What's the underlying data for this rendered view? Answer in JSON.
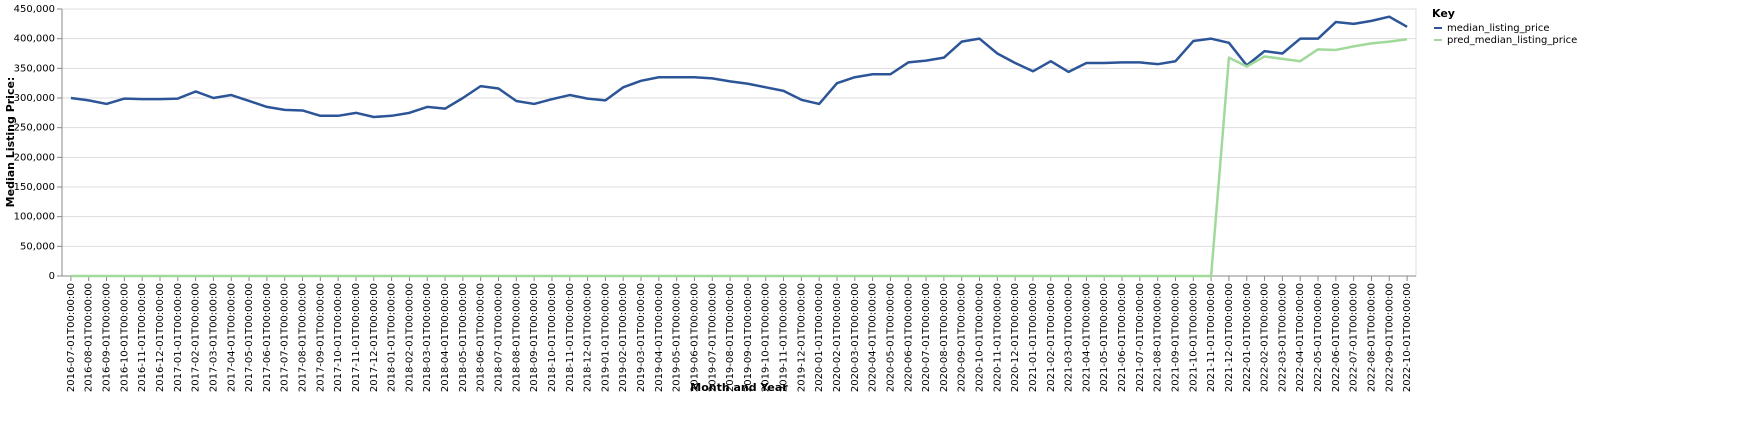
{
  "chart_data": {
    "type": "line",
    "x_label": "Month and Year",
    "y_label": "Median Listing Price:",
    "legend_title": "Key",
    "legend_position": "right",
    "grid": true,
    "categories": [
      "2016-07-01T00:00:00",
      "2016-08-01T00:00:00",
      "2016-09-01T00:00:00",
      "2016-10-01T00:00:00",
      "2016-11-01T00:00:00",
      "2016-12-01T00:00:00",
      "2017-01-01T00:00:00",
      "2017-02-01T00:00:00",
      "2017-03-01T00:00:00",
      "2017-04-01T00:00:00",
      "2017-05-01T00:00:00",
      "2017-06-01T00:00:00",
      "2017-07-01T00:00:00",
      "2017-08-01T00:00:00",
      "2017-09-01T00:00:00",
      "2017-10-01T00:00:00",
      "2017-11-01T00:00:00",
      "2017-12-01T00:00:00",
      "2018-01-01T00:00:00",
      "2018-02-01T00:00:00",
      "2018-03-01T00:00:00",
      "2018-04-01T00:00:00",
      "2018-05-01T00:00:00",
      "2018-06-01T00:00:00",
      "2018-07-01T00:00:00",
      "2018-08-01T00:00:00",
      "2018-09-01T00:00:00",
      "2018-10-01T00:00:00",
      "2018-11-01T00:00:00",
      "2018-12-01T00:00:00",
      "2019-01-01T00:00:00",
      "2019-02-01T00:00:00",
      "2019-03-01T00:00:00",
      "2019-04-01T00:00:00",
      "2019-05-01T00:00:00",
      "2019-06-01T00:00:00",
      "2019-07-01T00:00:00",
      "2019-08-01T00:00:00",
      "2019-09-01T00:00:00",
      "2019-10-01T00:00:00",
      "2019-11-01T00:00:00",
      "2019-12-01T00:00:00",
      "2020-01-01T00:00:00",
      "2020-02-01T00:00:00",
      "2020-03-01T00:00:00",
      "2020-04-01T00:00:00",
      "2020-05-01T00:00:00",
      "2020-06-01T00:00:00",
      "2020-07-01T00:00:00",
      "2020-08-01T00:00:00",
      "2020-09-01T00:00:00",
      "2020-10-01T00:00:00",
      "2020-11-01T00:00:00",
      "2020-12-01T00:00:00",
      "2021-01-01T00:00:00",
      "2021-02-01T00:00:00",
      "2021-03-01T00:00:00",
      "2021-04-01T00:00:00",
      "2021-05-01T00:00:00",
      "2021-06-01T00:00:00",
      "2021-07-01T00:00:00",
      "2021-08-01T00:00:00",
      "2021-09-01T00:00:00",
      "2021-10-01T00:00:00",
      "2021-11-01T00:00:00",
      "2021-12-01T00:00:00",
      "2022-01-01T00:00:00",
      "2022-02-01T00:00:00",
      "2022-03-01T00:00:00",
      "2022-04-01T00:00:00",
      "2022-05-01T00:00:00",
      "2022-06-01T00:00:00",
      "2022-07-01T00:00:00",
      "2022-08-01T00:00:00",
      "2022-09-01T00:00:00",
      "2022-10-01T00:00:00"
    ],
    "series": [
      {
        "name": "median_listing_price",
        "color": "#2c5598",
        "values": [
          300000,
          296000,
          290000,
          299000,
          298000,
          298000,
          299000,
          311000,
          300000,
          305000,
          295000,
          285000,
          280000,
          279000,
          270000,
          270000,
          275000,
          268000,
          270000,
          275000,
          285000,
          282000,
          300000,
          320000,
          316000,
          295000,
          290000,
          298000,
          305000,
          299000,
          296000,
          318000,
          329000,
          335000,
          335000,
          335000,
          333000,
          328000,
          324000,
          318000,
          312000,
          297000,
          290000,
          325000,
          335000,
          340000,
          340000,
          360000,
          363000,
          368000,
          395000,
          400000,
          375000,
          359000,
          345000,
          362000,
          344000,
          359000,
          359000,
          360000,
          360000,
          357000,
          362000,
          396000,
          400000,
          393000,
          355000,
          379000,
          375000,
          400000,
          400000,
          428000,
          425000,
          430000,
          437000,
          420000
        ]
      },
      {
        "name": "pred_median_listing_price",
        "color": "#a1d99b",
        "values": [
          0,
          0,
          0,
          0,
          0,
          0,
          0,
          0,
          0,
          0,
          0,
          0,
          0,
          0,
          0,
          0,
          0,
          0,
          0,
          0,
          0,
          0,
          0,
          0,
          0,
          0,
          0,
          0,
          0,
          0,
          0,
          0,
          0,
          0,
          0,
          0,
          0,
          0,
          0,
          0,
          0,
          0,
          0,
          0,
          0,
          0,
          0,
          0,
          0,
          0,
          0,
          0,
          0,
          0,
          0,
          0,
          0,
          0,
          0,
          0,
          0,
          0,
          0,
          0,
          0,
          368000,
          353000,
          370000,
          366000,
          362000,
          382000,
          381000,
          387000,
          392000,
          395000,
          399000
        ]
      }
    ],
    "ylim": [
      0,
      450000
    ],
    "yticks": [
      0,
      {
        "value": 50000,
        "label": "50,000"
      },
      {
        "value": 100000,
        "label": "100,000"
      },
      {
        "value": 150000,
        "label": "150,000"
      },
      {
        "value": 200000,
        "label": "200,000"
      },
      {
        "value": 250000,
        "label": "250,000"
      },
      {
        "value": 300000,
        "label": "300,000"
      },
      {
        "value": 350000,
        "label": "350,000"
      },
      {
        "value": 400000,
        "label": "400,000"
      },
      {
        "value": 450000,
        "label": "450,000"
      }
    ]
  }
}
